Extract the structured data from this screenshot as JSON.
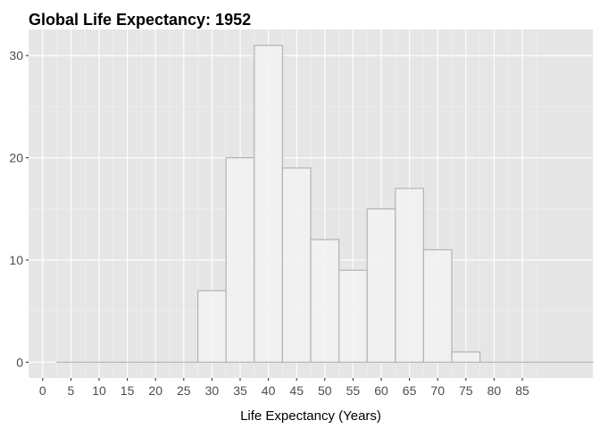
{
  "chart_data": {
    "type": "bar",
    "title": "Global Life Expectancy: 1952",
    "xlabel": "Life Expectancy (Years)",
    "ylabel": "",
    "bin_width": 5,
    "bin_centers": [
      5,
      10,
      15,
      20,
      25,
      30,
      35,
      40,
      45,
      50,
      55,
      60,
      65,
      70,
      75,
      80,
      85,
      90,
      95
    ],
    "values": [
      0,
      0,
      0,
      0,
      0,
      7,
      20,
      31,
      19,
      12,
      9,
      15,
      17,
      11,
      1,
      0,
      0,
      0,
      0
    ],
    "xlim": [
      -2.5,
      97.5
    ],
    "ylim": [
      -1.55,
      32.55
    ],
    "x_ticks": [
      0,
      5,
      10,
      15,
      20,
      25,
      30,
      35,
      40,
      45,
      50,
      55,
      60,
      65,
      70,
      75,
      80,
      85
    ],
    "y_ticks": [
      0,
      10,
      20,
      30
    ],
    "grid": true,
    "colors": {
      "panel": "#e6e6e6",
      "grid_major": "#ffffff",
      "grid_minor": "#f2f2f2",
      "bar_fill": "#f2f2f2",
      "bar_outline": "#b3b3b3"
    }
  }
}
